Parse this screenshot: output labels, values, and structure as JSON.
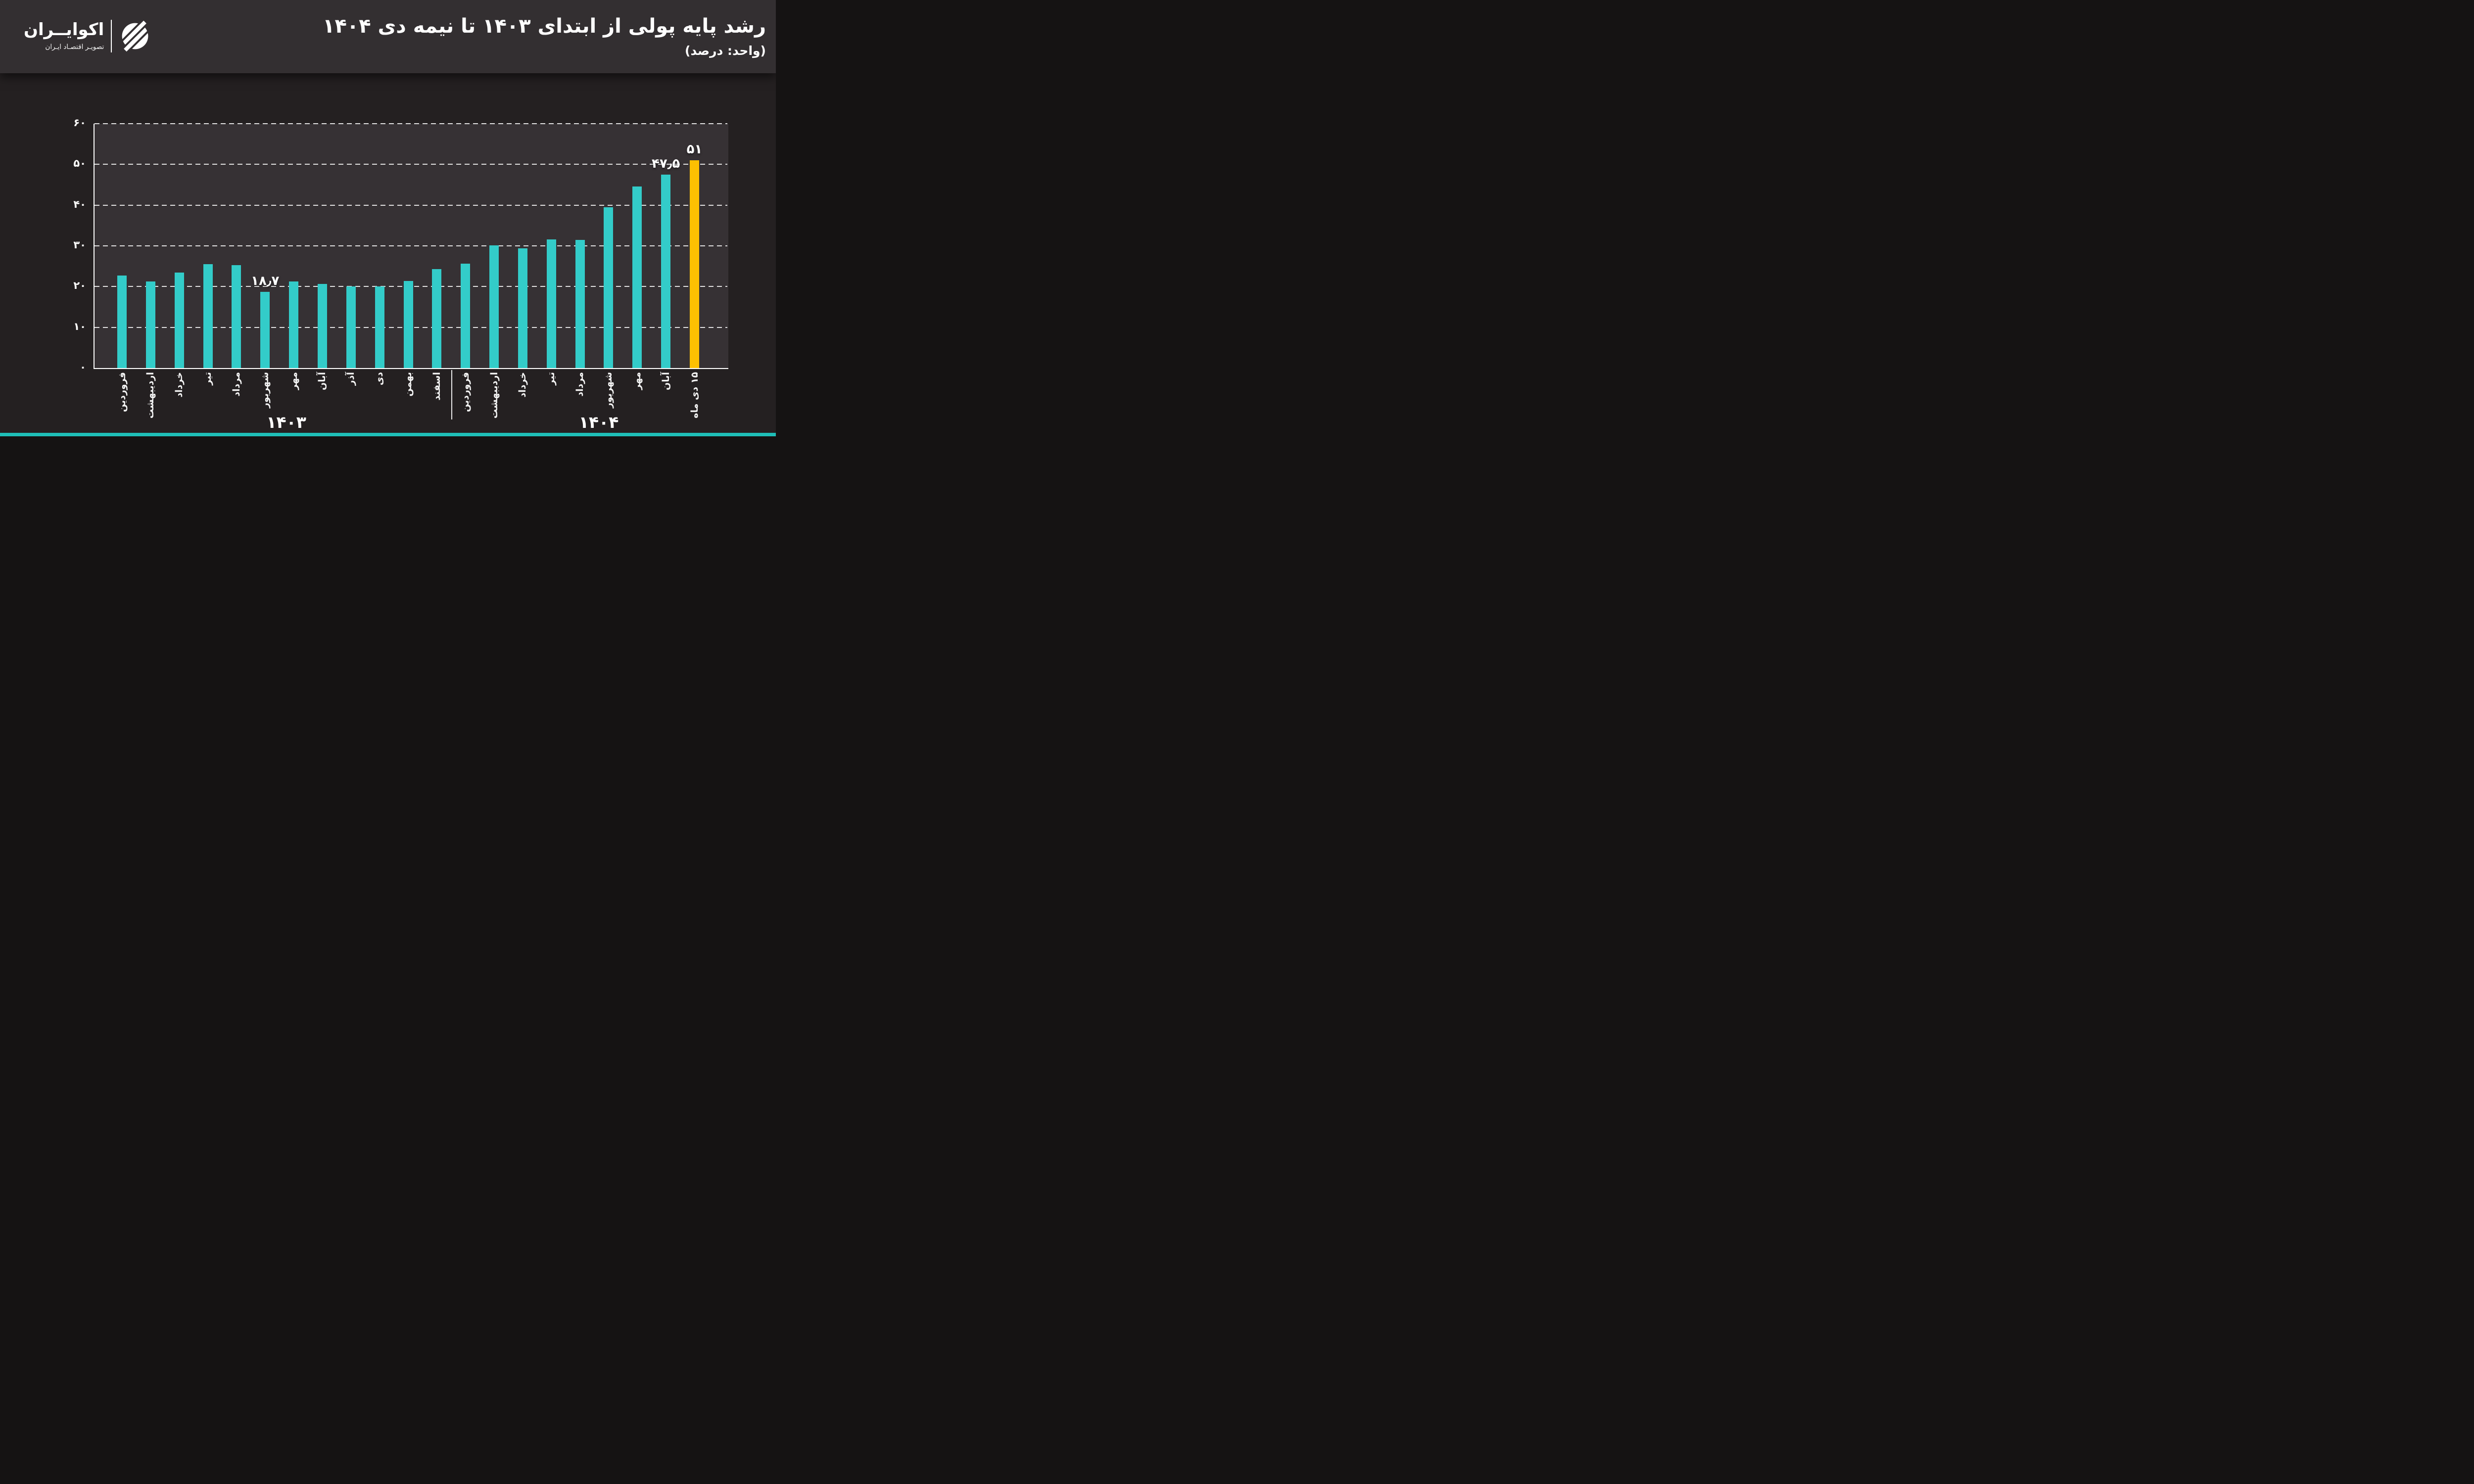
{
  "page": {
    "bg_color": "#242021",
    "header_bg_color": "#332F31",
    "plot_bg_color": "#363134",
    "accent_strip_color": "#1FBFB8"
  },
  "header": {
    "title": "رشد پایه پولی از ابتدای ۱۴۰۳ تا نیمه دی ۱۴۰۴",
    "subtitle": "(واحد: درصد)"
  },
  "logo": {
    "brand": "اکوایــران",
    "tagline": "تصویـر اقتصـاد ایـران",
    "mark": "ecoiran-circle-stripes-emblem"
  },
  "chart_data": {
    "type": "bar",
    "title": "رشد پایه پولی از ابتدای ۱۴۰۳ تا نیمه دی ۱۴۰۴",
    "unit_label": "(واحد: درصد)",
    "ylim": [
      0,
      60
    ],
    "ytick_values": [
      0,
      10,
      20,
      30,
      40,
      50,
      60
    ],
    "ytick_labels_fa": [
      "۰",
      "۱۰",
      "۲۰",
      "۳۰",
      "۴۰",
      "۵۰",
      "۶۰"
    ],
    "grid": "horizontal-dashed",
    "legend": "none",
    "bar_color": "#33CCC9",
    "highlight_color": "#FDC002",
    "groups": [
      {
        "year": 1403,
        "year_label_fa": "۱۴۰۳",
        "first_bar": 0,
        "last_bar": 11
      },
      {
        "year": 1404,
        "year_label_fa": "۱۴۰۴",
        "first_bar": 12,
        "last_bar": 20
      }
    ],
    "bars": [
      {
        "label": "فروردین",
        "value": 22.7,
        "annotation": null,
        "highlight": false
      },
      {
        "label": "اردیبهشت",
        "value": 21.2,
        "annotation": null,
        "highlight": false
      },
      {
        "label": "خرداد",
        "value": 23.4,
        "annotation": null,
        "highlight": false
      },
      {
        "label": "تیر",
        "value": 25.5,
        "annotation": null,
        "highlight": false
      },
      {
        "label": "مرداد",
        "value": 25.3,
        "annotation": null,
        "highlight": false
      },
      {
        "label": "شهریور",
        "value": 18.7,
        "annotation": "۱۸٫۷",
        "highlight": false
      },
      {
        "label": "مهر",
        "value": 21.2,
        "annotation": null,
        "highlight": false
      },
      {
        "label": "آبان",
        "value": 20.6,
        "annotation": null,
        "highlight": false
      },
      {
        "label": "آذر",
        "value": 20.0,
        "annotation": null,
        "highlight": false
      },
      {
        "label": "دی",
        "value": 20.1,
        "annotation": null,
        "highlight": false
      },
      {
        "label": "بهمن",
        "value": 21.4,
        "annotation": null,
        "highlight": false
      },
      {
        "label": "اسفند",
        "value": 24.3,
        "annotation": null,
        "highlight": false
      },
      {
        "label": "فروردین",
        "value": 25.6,
        "annotation": null,
        "highlight": false
      },
      {
        "label": "اردیبهشت",
        "value": 30.1,
        "annotation": null,
        "highlight": false
      },
      {
        "label": "خرداد",
        "value": 29.4,
        "annotation": null,
        "highlight": false
      },
      {
        "label": "تیر",
        "value": 31.6,
        "annotation": null,
        "highlight": false
      },
      {
        "label": "مرداد",
        "value": 31.4,
        "annotation": null,
        "highlight": false
      },
      {
        "label": "شهریور",
        "value": 39.5,
        "annotation": null,
        "highlight": false
      },
      {
        "label": "مهر",
        "value": 44.6,
        "annotation": null,
        "highlight": false
      },
      {
        "label": "آبان",
        "value": 47.5,
        "annotation": "۴۷٫۵",
        "highlight": false
      },
      {
        "label": "۱۵ دی ماه",
        "value": 51,
        "annotation": "۵۱",
        "highlight": true
      }
    ]
  }
}
